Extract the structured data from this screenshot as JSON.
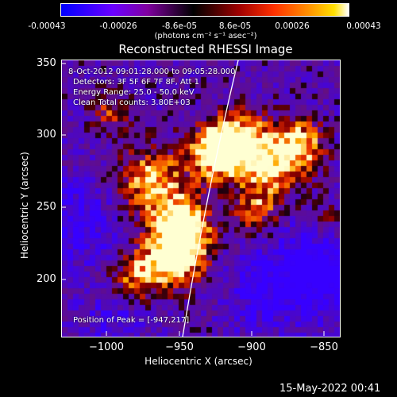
{
  "colorbar": {
    "ticks": [
      "-0.00043",
      "-0.00026",
      "-8.6e-05",
      "8.6e-05",
      "0.00026",
      "0.00043"
    ],
    "unit_line": "(photons cm⁻² s⁻¹ asec⁻²)"
  },
  "title": "Reconstructed RHESSI Image",
  "annotations": {
    "time_range": "8-Oct-2012 09:01:28.000 to 09:05:28.000",
    "detectors": "Detectors: 3F 5F 6F 7F 8F, Att 1",
    "energy": "Energy Range: 25.0 - 50.0 keV",
    "clean": "Clean    Total counts: 3.80E+03",
    "peak": "Position of Peak = [-947,217]"
  },
  "axes": {
    "xlabel": "Heliocentric X (arcsec)",
    "ylabel": "Heliocentric Y (arcsec)",
    "xticks": [
      "−1000",
      "−950",
      "−900",
      "−850"
    ],
    "yticks": [
      "350",
      "300",
      "250",
      "200"
    ]
  },
  "footer": "15-May-2022 00:41",
  "colors": {
    "background": "#000000",
    "limb": "#ffffff"
  }
}
